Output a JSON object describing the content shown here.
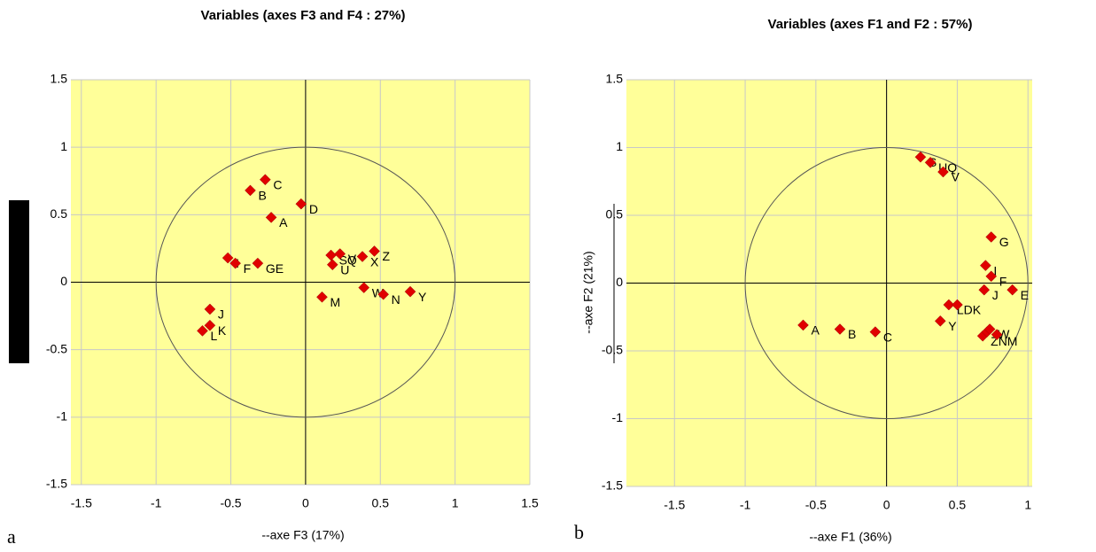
{
  "panels": [
    "a",
    "b"
  ],
  "chart_data": [
    {
      "type": "scatter",
      "title": "Variables (axes F3 and F4 : 27%)",
      "xlabel": "--axe F3 (17%)",
      "color": "#e00000",
      "x": [
        -0.27,
        -0.37,
        -0.23,
        -0.03,
        -0.52,
        -0.47,
        -0.32,
        0.17,
        0.23,
        0.18,
        0.38,
        0.46,
        0.39,
        0.11,
        0.52,
        0.7,
        -0.64,
        -0.64,
        -0.69
      ],
      "y": [
        0.76,
        0.68,
        0.48,
        0.58,
        0.18,
        0.14,
        0.14,
        0.2,
        0.21,
        0.13,
        0.19,
        0.23,
        -0.04,
        -0.11,
        -0.09,
        -0.07,
        -0.2,
        -0.32,
        -0.36
      ],
      "labels": [
        "C",
        "B",
        "A",
        "D",
        "I",
        "F",
        "GE",
        "SQ",
        "V",
        "U",
        "X",
        "Z",
        "W",
        "M",
        "N",
        "Y",
        "J",
        "K",
        "L"
      ],
      "xlim": [
        -1.57,
        1.5
      ],
      "ylim": [
        -1.5,
        1.5
      ],
      "xticks": [
        -1.5,
        -1,
        -0.5,
        0,
        0.5,
        1,
        1.5
      ],
      "yticks": [
        -1.5,
        -1,
        -0.5,
        0,
        0.5,
        1,
        1.5
      ],
      "grid": true
    },
    {
      "type": "scatter",
      "title": "Variables (axes F1 and F2 : 57%)",
      "xlabel": "--axe    F1 (36%)",
      "ylabel": "--axe  F2 (21%)",
      "color": "#e00000",
      "x": [
        -0.59,
        -0.33,
        -0.08,
        0.24,
        0.31,
        0.4,
        0.74,
        0.7,
        0.74,
        0.69,
        0.89,
        0.44,
        0.5,
        0.38,
        0.68,
        0.71,
        0.73,
        0.78
      ],
      "y": [
        -0.31,
        -0.34,
        -0.36,
        0.93,
        0.89,
        0.82,
        0.34,
        0.13,
        0.05,
        -0.05,
        -0.05,
        -0.16,
        -0.16,
        -0.28,
        -0.39,
        -0.36,
        -0.34,
        -0.38
      ],
      "labels": [
        "A",
        "B",
        "C",
        "S",
        "UQ",
        "V",
        "G",
        "I",
        "F",
        "J",
        "E",
        "LDK",
        null,
        "Y",
        "ZNM",
        null,
        "W",
        null
      ],
      "xlim": [
        -1.84,
        1.03
      ],
      "ylim": [
        -1.5,
        1.5
      ],
      "xticks": [
        -1.5,
        -1,
        -0.5,
        0,
        0.5,
        1
      ],
      "yticks": [
        -1.5,
        -1,
        -0.5,
        0,
        0.5,
        1,
        1.5
      ],
      "grid": true
    }
  ]
}
